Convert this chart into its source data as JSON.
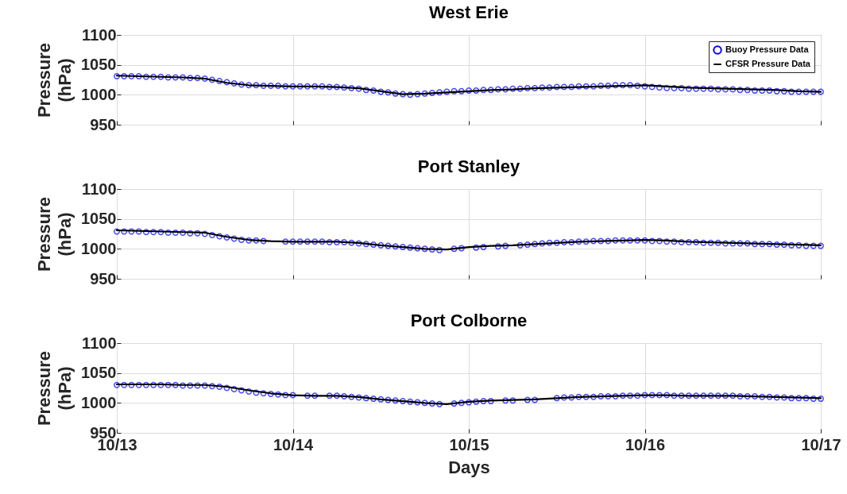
{
  "chart_data": [
    {
      "type": "line",
      "title": "West Erie",
      "ylabel": "Pressure\n(hPa)",
      "xlim": [
        "--10-13T00:00",
        "--10-17T00:00"
      ],
      "ylim": [
        950,
        1100
      ],
      "xticks": [
        "--10-13",
        "--10-14",
        "--10-15",
        "--10-16",
        "--10-17"
      ],
      "yticks": [
        950,
        1000,
        1050,
        1100
      ],
      "grid": true,
      "legend": "top right",
      "tick_labels": "y",
      "series": [
        {
          "name": "Buoy Pressure Data",
          "type": "scatter",
          "marker": "circle",
          "color": "#0000ff",
          "x": [
            "--10-13T00:00",
            "--10-13T01:00",
            "--10-13T02:00",
            "--10-13T03:00",
            "--10-13T04:00",
            "--10-13T05:00",
            "--10-13T06:00",
            "--10-13T07:00",
            "--10-13T08:00",
            "--10-13T09:00",
            "--10-13T10:00",
            "--10-13T11:00",
            "--10-13T12:00",
            "--10-13T13:00",
            "--10-13T14:00",
            "--10-13T15:00",
            "--10-13T16:00",
            "--10-13T17:00",
            "--10-13T18:00",
            "--10-13T19:00",
            "--10-13T20:00",
            "--10-13T21:00",
            "--10-13T22:00",
            "--10-13T23:00",
            "--10-14T00:00",
            "--10-14T01:00",
            "--10-14T02:00",
            "--10-14T03:00",
            "--10-14T04:00",
            "--10-14T05:00",
            "--10-14T06:00",
            "--10-14T07:00",
            "--10-14T08:00",
            "--10-14T09:00",
            "--10-14T10:00",
            "--10-14T11:00",
            "--10-14T12:00",
            "--10-14T13:00",
            "--10-14T14:00",
            "--10-14T15:00",
            "--10-14T16:00",
            "--10-14T17:00",
            "--10-14T18:00",
            "--10-14T19:00",
            "--10-14T20:00",
            "--10-14T21:00",
            "--10-14T22:00",
            "--10-14T23:00",
            "--10-15T00:00",
            "--10-15T01:00",
            "--10-15T02:00",
            "--10-15T03:00",
            "--10-15T04:00",
            "--10-15T05:00",
            "--10-15T06:00",
            "--10-15T07:00",
            "--10-15T08:00",
            "--10-15T09:00",
            "--10-15T10:00",
            "--10-15T11:00",
            "--10-15T12:00",
            "--10-15T13:00",
            "--10-15T14:00",
            "--10-15T15:00",
            "--10-15T16:00",
            "--10-15T17:00",
            "--10-15T18:00",
            "--10-15T19:00",
            "--10-15T20:00",
            "--10-15T21:00",
            "--10-15T22:00",
            "--10-15T23:00",
            "--10-16T00:00",
            "--10-16T01:00",
            "--10-16T02:00",
            "--10-16T03:00",
            "--10-16T04:00",
            "--10-16T05:00",
            "--10-16T06:00",
            "--10-16T07:00",
            "--10-16T08:00",
            "--10-16T09:00",
            "--10-16T10:00",
            "--10-16T11:00",
            "--10-16T12:00",
            "--10-16T13:00",
            "--10-16T14:00",
            "--10-16T15:00",
            "--10-16T16:00",
            "--10-16T17:00",
            "--10-16T18:00",
            "--10-16T19:00",
            "--10-16T20:00",
            "--10-16T21:00",
            "--10-16T22:00",
            "--10-16T23:00",
            "--10-17T00:00"
          ],
          "values": [
            1031,
            1031,
            1031,
            1031,
            1030,
            1030,
            1030,
            1029,
            1029,
            1029,
            1028,
            1028,
            1027,
            1025,
            1023,
            1021,
            1019,
            1017,
            1016,
            1016,
            1015,
            1015,
            1015,
            1014,
            1014,
            1014,
            1014,
            1014,
            1014,
            1013,
            1013,
            1012,
            1011,
            1010,
            1008,
            1007,
            1005,
            1004,
            1002,
            1001,
            1000,
            1001,
            1002,
            1003,
            1004,
            1005,
            1006,
            1006,
            1007,
            1007,
            1008,
            1008,
            1009,
            1009,
            1010,
            1010,
            1011,
            1011,
            1012,
            1012,
            1013,
            1013,
            1013,
            1014,
            1014,
            1014,
            1015,
            1015,
            1016,
            1016,
            1016,
            1015,
            1014,
            1013,
            1012,
            1011,
            1011,
            1011,
            1010,
            1010,
            1010,
            1010,
            1009,
            1009,
            1009,
            1008,
            1008,
            1007,
            1007,
            1007,
            1006,
            1006,
            1005,
            1005,
            1005,
            1005,
            1005
          ]
        },
        {
          "name": "CFSR Pressure Data",
          "type": "line",
          "line_style": "solid",
          "color": "#000000",
          "x": [
            "--10-13T00:00",
            "--10-13T03:00",
            "--10-13T06:00",
            "--10-13T09:00",
            "--10-13T12:00",
            "--10-13T15:00",
            "--10-13T18:00",
            "--10-13T21:00",
            "--10-14T00:00",
            "--10-14T03:00",
            "--10-14T06:00",
            "--10-14T09:00",
            "--10-14T12:00",
            "--10-14T15:00",
            "--10-14T18:00",
            "--10-14T21:00",
            "--10-15T00:00",
            "--10-15T03:00",
            "--10-15T06:00",
            "--10-15T09:00",
            "--10-15T12:00",
            "--10-15T15:00",
            "--10-15T18:00",
            "--10-15T21:00",
            "--10-16T00:00",
            "--10-16T03:00",
            "--10-16T06:00",
            "--10-16T09:00",
            "--10-16T12:00",
            "--10-16T15:00",
            "--10-16T18:00",
            "--10-16T21:00",
            "--10-17T00:00"
          ],
          "values": [
            1032,
            1031,
            1030,
            1029,
            1027,
            1020,
            1016,
            1015,
            1014,
            1014,
            1013,
            1011,
            1006,
            1001,
            1002,
            1004,
            1006,
            1008,
            1009,
            1011,
            1012,
            1013,
            1014,
            1015,
            1016,
            1014,
            1012,
            1011,
            1010,
            1009,
            1008,
            1006,
            1005
          ]
        }
      ]
    },
    {
      "type": "line",
      "title": "Port Stanley",
      "ylabel": "Pressure\n(hPa)",
      "xlim": [
        "--10-13T00:00",
        "--10-17T00:00"
      ],
      "ylim": [
        950,
        1100
      ],
      "xticks": [
        "--10-13",
        "--10-14",
        "--10-15",
        "--10-16",
        "--10-17"
      ],
      "yticks": [
        950,
        1000,
        1050,
        1100
      ],
      "grid": true,
      "tick_labels": "y",
      "series": [
        {
          "type": "scatter",
          "marker": "circle",
          "color": "#0000ff",
          "x": [
            "--10-13T00:00",
            "--10-13T01:00",
            "--10-13T02:00",
            "--10-13T03:00",
            "--10-13T04:00",
            "--10-13T05:00",
            "--10-13T06:00",
            "--10-13T07:00",
            "--10-13T08:00",
            "--10-13T09:00",
            "--10-13T10:00",
            "--10-13T11:00",
            "--10-13T12:00",
            "--10-13T13:00",
            "--10-13T14:00",
            "--10-13T15:00",
            "--10-13T16:00",
            "--10-13T17:00",
            "--10-13T18:00",
            "--10-13T19:00",
            "--10-13T20:00",
            "--10-13T21:00",
            "--10-13T22:00",
            "--10-13T23:00",
            "--10-14T00:00",
            "--10-14T01:00",
            "--10-14T02:00",
            "--10-14T03:00",
            "--10-14T04:00",
            "--10-14T05:00",
            "--10-14T06:00",
            "--10-14T07:00",
            "--10-14T08:00",
            "--10-14T09:00",
            "--10-14T10:00",
            "--10-14T11:00",
            "--10-14T12:00",
            "--10-14T13:00",
            "--10-14T14:00",
            "--10-14T15:00",
            "--10-14T16:00",
            "--10-14T17:00",
            "--10-14T18:00",
            "--10-14T19:00",
            "--10-14T20:00",
            "--10-14T21:00",
            "--10-14T22:00",
            "--10-14T23:00",
            "--10-15T00:00",
            "--10-15T01:00",
            "--10-15T02:00",
            "--10-15T03:00",
            "--10-15T04:00",
            "--10-15T05:00",
            "--10-15T06:00",
            "--10-15T07:00",
            "--10-15T08:00",
            "--10-15T09:00",
            "--10-15T10:00",
            "--10-15T11:00",
            "--10-15T12:00",
            "--10-15T13:00",
            "--10-15T14:00",
            "--10-15T15:00",
            "--10-15T16:00",
            "--10-15T17:00",
            "--10-15T18:00",
            "--10-15T19:00",
            "--10-15T20:00",
            "--10-15T21:00",
            "--10-15T22:00",
            "--10-15T23:00",
            "--10-16T00:00",
            "--10-16T01:00",
            "--10-16T02:00",
            "--10-16T03:00",
            "--10-16T04:00",
            "--10-16T05:00",
            "--10-16T06:00",
            "--10-16T07:00",
            "--10-16T08:00",
            "--10-16T09:00",
            "--10-16T10:00",
            "--10-16T11:00",
            "--10-16T12:00",
            "--10-16T13:00",
            "--10-16T14:00",
            "--10-16T15:00",
            "--10-16T16:00",
            "--10-16T17:00",
            "--10-16T18:00",
            "--10-16T19:00",
            "--10-16T20:00",
            "--10-16T21:00",
            "--10-16T22:00",
            "--10-16T23:00",
            "--10-17T00:00"
          ],
          "values": [
            1029,
            1029,
            1029,
            1029,
            1028,
            1028,
            1028,
            1027,
            1027,
            1027,
            1026,
            1026,
            1025,
            1023,
            1021,
            1019,
            1017,
            1015,
            1014,
            1014,
            1013,
            null,
            null,
            1012,
            1012,
            1012,
            1012,
            1012,
            1012,
            1011,
            1011,
            1011,
            1010,
            1009,
            1008,
            1007,
            1006,
            1005,
            1004,
            1003,
            1002,
            1001,
            1000,
            999,
            998,
            null,
            1000,
            1001,
            null,
            1002,
            1003,
            null,
            1004,
            1005,
            null,
            1006,
            1007,
            1008,
            1009,
            1010,
            1010,
            1011,
            1011,
            1012,
            1012,
            1013,
            1013,
            1013,
            1014,
            1014,
            1014,
            1014,
            1014,
            1013,
            1013,
            1012,
            1012,
            1011,
            1011,
            1011,
            1010,
            1010,
            1010,
            1009,
            1009,
            1009,
            1009,
            1008,
            1008,
            1008,
            1007,
            1007,
            1006,
            1006,
            1005,
            1005,
            1005
          ]
        },
        {
          "type": "line",
          "line_style": "solid",
          "color": "#000000",
          "x": [
            "--10-13T00:00",
            "--10-13T03:00",
            "--10-13T06:00",
            "--10-13T09:00",
            "--10-13T12:00",
            "--10-13T15:00",
            "--10-13T18:00",
            "--10-13T21:00",
            "--10-14T00:00",
            "--10-14T03:00",
            "--10-14T06:00",
            "--10-14T09:00",
            "--10-14T12:00",
            "--10-14T15:00",
            "--10-14T18:00",
            "--10-14T21:00",
            "--10-15T00:00",
            "--10-15T03:00",
            "--10-15T06:00",
            "--10-15T09:00",
            "--10-15T12:00",
            "--10-15T15:00",
            "--10-15T18:00",
            "--10-15T21:00",
            "--10-16T00:00",
            "--10-16T03:00",
            "--10-16T06:00",
            "--10-16T09:00",
            "--10-16T12:00",
            "--10-16T15:00",
            "--10-16T18:00",
            "--10-16T21:00",
            "--10-17T00:00"
          ],
          "values": [
            1031,
            1030,
            1029,
            1028,
            1027,
            1020,
            1015,
            1013,
            1012,
            1012,
            1012,
            1010,
            1006,
            1003,
            1000,
            999,
            1003,
            1005,
            1006,
            1008,
            1010,
            1012,
            1013,
            1014,
            1015,
            1014,
            1012,
            1011,
            1010,
            1009,
            1008,
            1007,
            1006
          ]
        }
      ]
    },
    {
      "type": "line",
      "title": "Port Colborne",
      "xlabel": "Days",
      "ylabel": "Pressure\n(hPa)",
      "xlim": [
        "--10-13T00:00",
        "--10-17T00:00"
      ],
      "ylim": [
        950,
        1100
      ],
      "xticks": [
        {
          "value": "--10-13",
          "label": "10/13"
        },
        {
          "value": "--10-14",
          "label": "10/14"
        },
        {
          "value": "--10-15",
          "label": "10/15"
        },
        {
          "value": "--10-16",
          "label": "10/16"
        },
        {
          "value": "--10-17",
          "label": "10/17"
        }
      ],
      "yticks": [
        950,
        1000,
        1050,
        1100
      ],
      "grid": true,
      "series": [
        {
          "type": "scatter",
          "marker": "circle",
          "color": "#0000ff",
          "x": [
            "--10-13T00:00",
            "--10-13T01:00",
            "--10-13T02:00",
            "--10-13T03:00",
            "--10-13T04:00",
            "--10-13T05:00",
            "--10-13T06:00",
            "--10-13T07:00",
            "--10-13T08:00",
            "--10-13T09:00",
            "--10-13T10:00",
            "--10-13T11:00",
            "--10-13T12:00",
            "--10-13T13:00",
            "--10-13T14:00",
            "--10-13T15:00",
            "--10-13T16:00",
            "--10-13T17:00",
            "--10-13T18:00",
            "--10-13T19:00",
            "--10-13T20:00",
            "--10-13T21:00",
            "--10-13T22:00",
            "--10-13T23:00",
            "--10-14T00:00",
            "--10-14T01:00",
            "--10-14T02:00",
            "--10-14T03:00",
            "--10-14T04:00",
            "--10-14T05:00",
            "--10-14T06:00",
            "--10-14T07:00",
            "--10-14T08:00",
            "--10-14T09:00",
            "--10-14T10:00",
            "--10-14T11:00",
            "--10-14T12:00",
            "--10-14T13:00",
            "--10-14T14:00",
            "--10-14T15:00",
            "--10-14T16:00",
            "--10-14T17:00",
            "--10-14T18:00",
            "--10-14T19:00",
            "--10-14T20:00",
            "--10-14T21:00",
            "--10-14T22:00",
            "--10-14T23:00",
            "--10-15T00:00",
            "--10-15T01:00",
            "--10-15T02:00",
            "--10-15T03:00",
            "--10-15T04:00",
            "--10-15T05:00",
            "--10-15T06:00",
            "--10-15T07:00",
            "--10-15T08:00",
            "--10-15T09:00",
            "--10-15T10:00",
            "--10-15T11:00",
            "--10-15T12:00",
            "--10-15T13:00",
            "--10-15T14:00",
            "--10-15T15:00",
            "--10-15T16:00",
            "--10-15T17:00",
            "--10-15T18:00",
            "--10-15T19:00",
            "--10-15T20:00",
            "--10-15T21:00",
            "--10-15T22:00",
            "--10-15T23:00",
            "--10-16T00:00",
            "--10-16T01:00",
            "--10-16T02:00",
            "--10-16T03:00",
            "--10-16T04:00",
            "--10-16T05:00",
            "--10-16T06:00",
            "--10-16T07:00",
            "--10-16T08:00",
            "--10-16T09:00",
            "--10-16T10:00",
            "--10-16T11:00",
            "--10-16T12:00",
            "--10-16T13:00",
            "--10-16T14:00",
            "--10-16T15:00",
            "--10-16T16:00",
            "--10-16T17:00",
            "--10-16T18:00",
            "--10-16T19:00",
            "--10-16T20:00",
            "--10-16T21:00",
            "--10-16T22:00",
            "--10-16T23:00",
            "--10-17T00:00"
          ],
          "values": [
            1030,
            1030,
            1030,
            1030,
            1030,
            1030,
            1030,
            1030,
            1030,
            1029,
            1029,
            1029,
            1029,
            1028,
            1027,
            1025,
            1023,
            1021,
            1019,
            1017,
            1016,
            1015,
            1014,
            1013,
            1013,
            null,
            1012,
            1012,
            null,
            1012,
            1012,
            1011,
            1010,
            1009,
            1008,
            1007,
            1006,
            1005,
            1004,
            1003,
            1002,
            1001,
            1000,
            999,
            998,
            null,
            999,
            1000,
            1001,
            1002,
            1003,
            1003,
            null,
            1004,
            1004,
            null,
            1005,
            1005,
            null,
            null,
            1008,
            1009,
            1009,
            1010,
            1010,
            1010,
            1011,
            1011,
            1011,
            1012,
            1012,
            1012,
            1013,
            1013,
            1013,
            1013,
            1012,
            1012,
            1012,
            1012,
            1012,
            1012,
            1012,
            1012,
            1012,
            1011,
            1011,
            1011,
            1010,
            1010,
            1009,
            1009,
            1008,
            1008,
            1008,
            1007,
            1007
          ]
        },
        {
          "type": "line",
          "line_style": "solid",
          "color": "#000000",
          "x": [
            "--10-13T00:00",
            "--10-13T03:00",
            "--10-13T06:00",
            "--10-13T09:00",
            "--10-13T12:00",
            "--10-13T15:00",
            "--10-13T18:00",
            "--10-13T21:00",
            "--10-14T00:00",
            "--10-14T03:00",
            "--10-14T06:00",
            "--10-14T09:00",
            "--10-14T12:00",
            "--10-14T15:00",
            "--10-14T18:00",
            "--10-14T21:00",
            "--10-15T00:00",
            "--10-15T03:00",
            "--10-15T06:00",
            "--10-15T09:00",
            "--10-15T12:00",
            "--10-15T15:00",
            "--10-15T18:00",
            "--10-15T21:00",
            "--10-16T00:00",
            "--10-16T03:00",
            "--10-16T06:00",
            "--10-16T09:00",
            "--10-16T12:00",
            "--10-16T15:00",
            "--10-16T18:00",
            "--10-16T21:00",
            "--10-17T00:00"
          ],
          "values": [
            1031,
            1031,
            1031,
            1030,
            1030,
            1027,
            1021,
            1016,
            1013,
            1012,
            1012,
            1010,
            1006,
            1003,
            1000,
            998,
            1002,
            1004,
            1005,
            1006,
            1008,
            1010,
            1011,
            1012,
            1013,
            1013,
            1012,
            1012,
            1012,
            1011,
            1010,
            1009,
            1008
          ]
        }
      ]
    }
  ]
}
